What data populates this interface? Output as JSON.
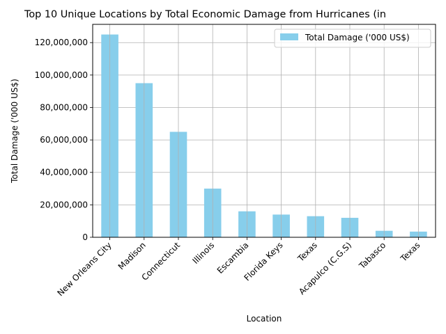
{
  "chart_data": {
    "type": "bar",
    "title": "Top 10 Unique Locations by Total Economic Damage from Hurricanes (in",
    "xlabel": "Location",
    "ylabel": "Total Damage ('000 US$)",
    "categories": [
      "New Orleans City",
      "Madison",
      "Connecticut",
      "Illinois",
      "Escambia",
      "Florida Keys",
      "Texas",
      "Acapulco (C.G.S)",
      "Tabasco",
      "Texas"
    ],
    "series": [
      {
        "name": "Total Damage ('000 US$)",
        "values": [
          125000000,
          95000000,
          65000000,
          30000000,
          16000000,
          14000000,
          13000000,
          12000000,
          4000000,
          3500000
        ]
      }
    ],
    "yticks": [
      0,
      20000000,
      40000000,
      60000000,
      80000000,
      100000000,
      120000000
    ],
    "ytick_labels": [
      "0",
      "20,000,000",
      "40,000,000",
      "60,000,000",
      "80,000,000",
      "100,000,000",
      "120,000,000"
    ],
    "ylim": [
      0,
      131250000
    ],
    "grid": true,
    "legend_position": "top-right",
    "colors": {
      "bar": "#87ceeb",
      "grid": "#b0b0b0",
      "axis": "#000000"
    }
  }
}
